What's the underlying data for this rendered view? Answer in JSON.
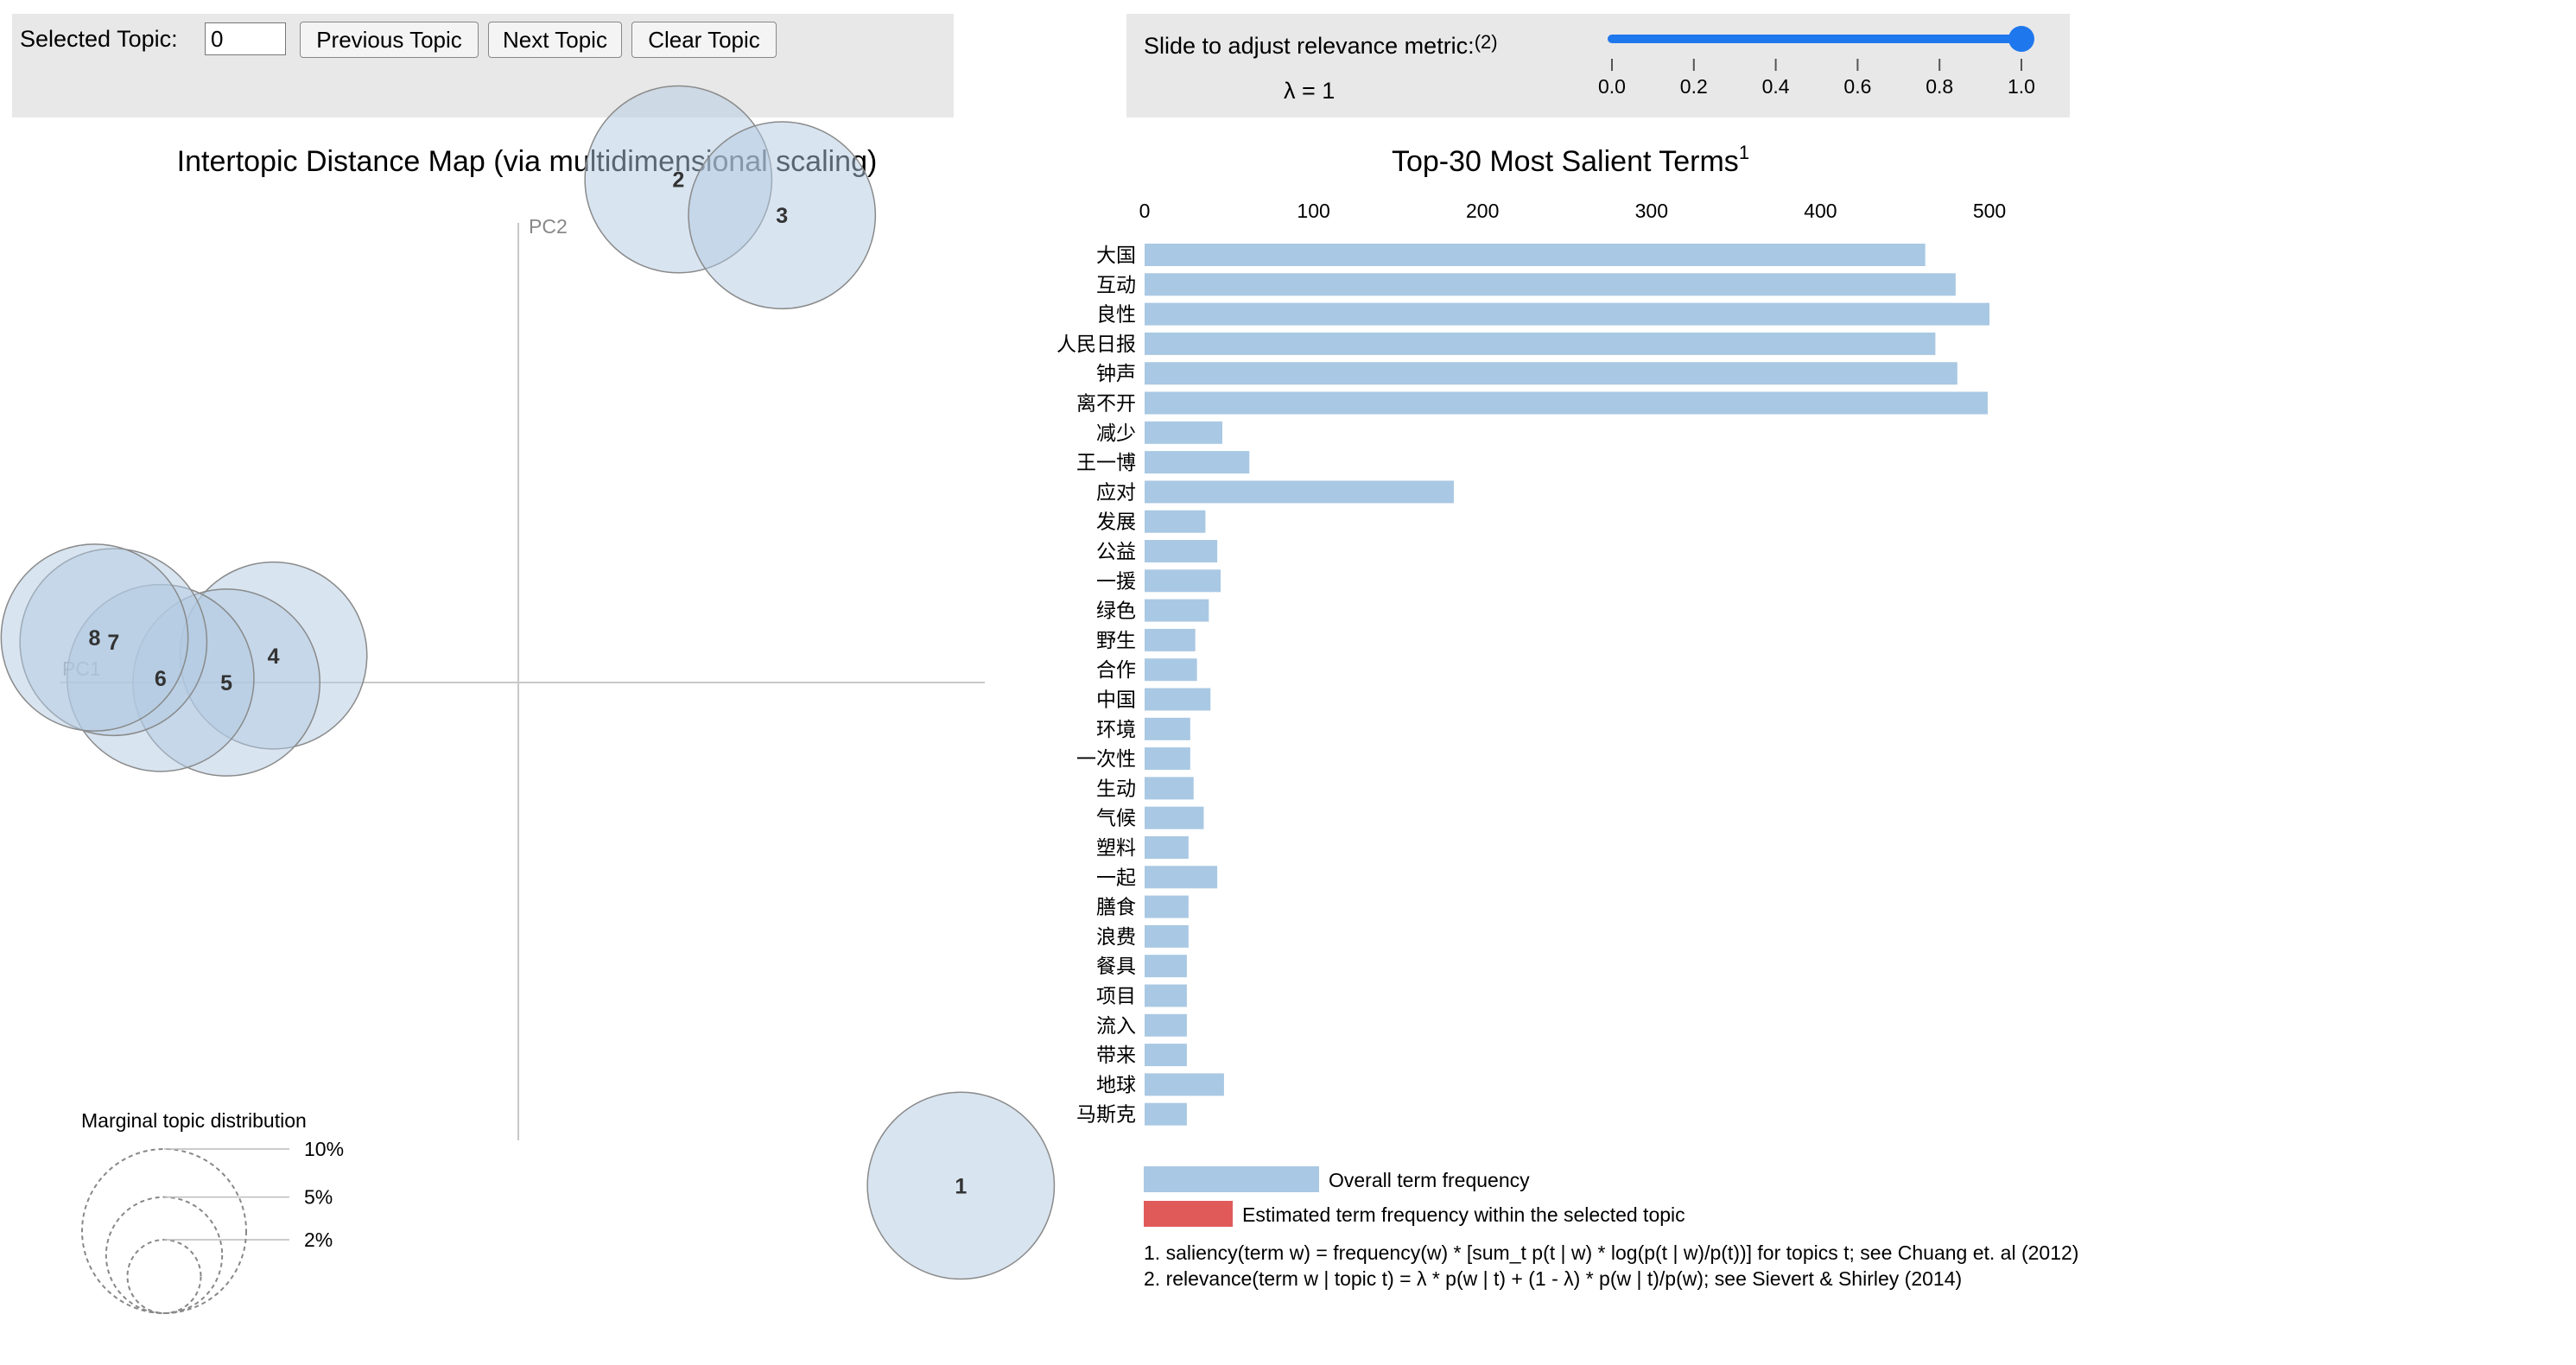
{
  "controls": {
    "selected_topic_label": "Selected Topic:",
    "selected_topic_value": "0",
    "previous_button": "Previous Topic",
    "next_button": "Next Topic",
    "clear_button": "Clear Topic",
    "slider_label": "Slide to adjust relevance metric:",
    "slider_label_footnote": "(2)",
    "lambda_label": "λ = 1",
    "lambda_value": 1,
    "slider_ticks": [
      "0.0",
      "0.2",
      "0.4",
      "0.6",
      "0.8",
      "1.0"
    ],
    "slider_color": "#1f77ee"
  },
  "chart_data": [
    {
      "type": "scatter",
      "title": "Intertopic Distance Map (via multidimensional scaling)",
      "xlabel": "PC1",
      "ylabel": "PC2",
      "topics": [
        {
          "id": 1,
          "x": 0.47,
          "y": -0.56,
          "size": 0.105
        },
        {
          "id": 2,
          "x": 0.17,
          "y": 0.56,
          "size": 0.105
        },
        {
          "id": 3,
          "x": 0.28,
          "y": 0.52,
          "size": 0.105
        },
        {
          "id": 4,
          "x": -0.26,
          "y": 0.03,
          "size": 0.105
        },
        {
          "id": 5,
          "x": -0.31,
          "y": 0.0,
          "size": 0.105
        },
        {
          "id": 6,
          "x": -0.38,
          "y": 0.005,
          "size": 0.105
        },
        {
          "id": 7,
          "x": -0.43,
          "y": 0.045,
          "size": 0.105
        },
        {
          "id": 8,
          "x": -0.45,
          "y": 0.05,
          "size": 0.105
        }
      ],
      "legend": {
        "title": "Marginal topic distribution",
        "levels": [
          "2%",
          "5%",
          "10%"
        ],
        "level_values": [
          2,
          5,
          10
        ]
      },
      "circle_color": "#b2c9e2",
      "label_color": "#333333"
    },
    {
      "type": "bar",
      "title": "Top-30 Most Salient Terms",
      "title_footnote": "1",
      "xticks": [
        "0",
        "100",
        "200",
        "300",
        "400",
        "500"
      ],
      "xlim": [
        0,
        520
      ],
      "terms": [
        "大国",
        "互动",
        "良性",
        "人民日报",
        "钟声",
        "离不开",
        "减少",
        "王一博",
        "应对",
        "发展",
        "公益",
        "一援",
        "绿色",
        "野生",
        "合作",
        "中国",
        "环境",
        "一次性",
        "生动",
        "气候",
        "塑料",
        "一起",
        "膳食",
        "浪费",
        "餐具",
        "项目",
        "流入",
        "带来",
        "地球",
        "马斯克"
      ],
      "overall_frequency": [
        462,
        480,
        500,
        468,
        481,
        499,
        46,
        62,
        183,
        36,
        43,
        45,
        38,
        30,
        31,
        39,
        27,
        27,
        29,
        35,
        26,
        43,
        26,
        26,
        25,
        25,
        25,
        25,
        47,
        25
      ],
      "topic_frequency": [],
      "legend": [
        "Overall term frequency",
        "Estimated term frequency within the selected topic"
      ],
      "overall_color": "#a9c8e3",
      "topic_color": "#e05a5a",
      "footnotes": [
        "1. saliency(term w) = frequency(w) * [sum_t p(t | w) * log(p(t | w)/p(t))] for topics t; see Chuang et. al (2012)",
        "2. relevance(term w | topic t) = λ * p(w | t) + (1 - λ) * p(w | t)/p(w); see Sievert & Shirley (2014)"
      ]
    }
  ]
}
